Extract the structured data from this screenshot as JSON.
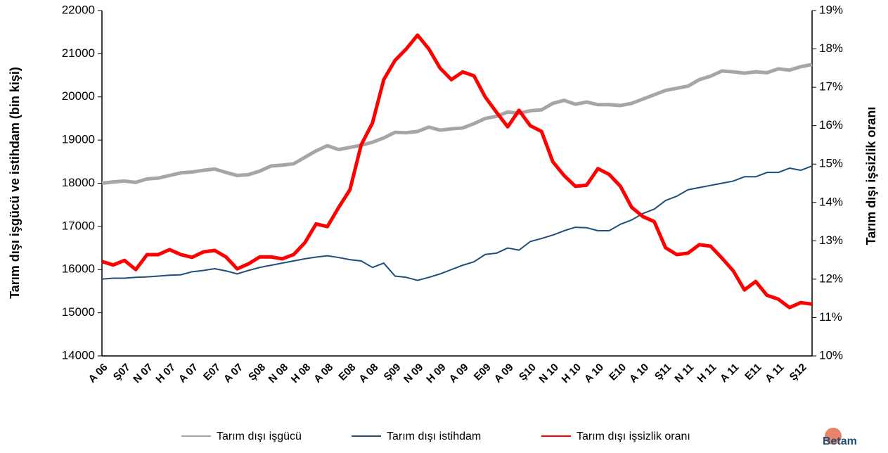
{
  "chart_data": {
    "type": "line",
    "y_label": "Tarım dışı işgücü ve istihdam (bin kişi)",
    "y2_label": "Tarım dışı işsizlik oranı",
    "logo": "Betam",
    "categories": [
      "A 06",
      null,
      "Ş07",
      null,
      "N 07",
      null,
      "H 07",
      null,
      "A 07",
      null,
      "E07",
      null,
      "A 07",
      null,
      "Ş08",
      null,
      "N 08",
      null,
      "H 08",
      null,
      "A 08",
      null,
      "E08",
      null,
      "A 08",
      null,
      "Ş09",
      null,
      "N 09",
      null,
      "H 09",
      null,
      "A 09",
      null,
      "E09",
      null,
      "A 09",
      null,
      "Ş10",
      null,
      "N 10",
      null,
      "H 10",
      null,
      "A 10",
      null,
      "E10",
      null,
      "A 10",
      null,
      "Ş11",
      null,
      "N 11",
      null,
      "H 11",
      null,
      "A 11",
      null,
      "E11",
      null,
      "A 11",
      null,
      "Ş12",
      null
    ],
    "ylim": [
      14000,
      22000
    ],
    "yticks": [
      14000,
      15000,
      16000,
      17000,
      18000,
      19000,
      20000,
      21000,
      22000
    ],
    "y2lim": [
      10,
      19
    ],
    "y2ticks": [
      {
        "value": 10,
        "label": "10%"
      },
      {
        "value": 11,
        "label": "11%"
      },
      {
        "value": 12,
        "label": "12%"
      },
      {
        "value": 13,
        "label": "13%"
      },
      {
        "value": 14,
        "label": "14%"
      },
      {
        "value": 15,
        "label": "15%"
      },
      {
        "value": 16,
        "label": "16%"
      },
      {
        "value": 17,
        "label": "17%"
      },
      {
        "value": 18,
        "label": "18%"
      },
      {
        "value": 19,
        "label": "19%"
      }
    ],
    "legend": "bottom",
    "series": [
      {
        "name": "Tarım dışı işgücü",
        "color": "#a6a6a6",
        "width": 5,
        "values": [
          18000,
          18030,
          18050,
          18020,
          18100,
          18120,
          18180,
          18240,
          18260,
          18300,
          18330,
          18250,
          18180,
          18200,
          18280,
          18400,
          18420,
          18450,
          18600,
          18750,
          18870,
          18780,
          18830,
          18880,
          18950,
          19050,
          19180,
          19170,
          19200,
          19300,
          19230,
          19260,
          19280,
          19380,
          19500,
          19550,
          19650,
          19620,
          19680,
          19700,
          19850,
          19920,
          19830,
          19880,
          19820,
          19820,
          19800,
          19850,
          19950,
          20050,
          20150,
          20200,
          20250,
          20400,
          20480,
          20600,
          20580,
          20550,
          20580,
          20560,
          20650,
          20620,
          20700,
          20750
        ]
      },
      {
        "name": "Tarım dışı istihdam",
        "color": "#1f4e79",
        "width": 2,
        "values": [
          15780,
          15800,
          15800,
          15820,
          15830,
          15850,
          15870,
          15880,
          15950,
          15980,
          16020,
          15970,
          15900,
          15980,
          16050,
          16100,
          16150,
          16200,
          16250,
          16290,
          16320,
          16280,
          16230,
          16200,
          16050,
          16150,
          15850,
          15820,
          15750,
          15820,
          15900,
          16000,
          16100,
          16180,
          16350,
          16380,
          16500,
          16450,
          16650,
          16720,
          16800,
          16900,
          16980,
          16970,
          16900,
          16900,
          17050,
          17150,
          17300,
          17400,
          17600,
          17700,
          17850,
          17900,
          17950,
          18000,
          18050,
          18150,
          18150,
          18250,
          18250,
          18350,
          18300,
          18400
        ]
      },
      {
        "name": "Tarım dışı işsizlik oranı",
        "color": "#ff0000",
        "width": 5,
        "axis": "y2",
        "values": [
          12.46,
          12.37,
          12.49,
          12.25,
          12.64,
          12.64,
          12.77,
          12.64,
          12.57,
          12.71,
          12.75,
          12.58,
          12.27,
          12.4,
          12.58,
          12.58,
          12.53,
          12.64,
          12.95,
          13.44,
          13.37,
          13.87,
          14.33,
          15.5,
          16.07,
          17.2,
          17.7,
          18.0,
          18.36,
          18.0,
          17.5,
          17.2,
          17.4,
          17.3,
          16.75,
          16.35,
          15.97,
          16.4,
          16.0,
          15.85,
          15.06,
          14.7,
          14.42,
          14.45,
          14.88,
          14.73,
          14.42,
          13.87,
          13.63,
          13.5,
          12.82,
          12.64,
          12.68,
          12.9,
          12.86,
          12.55,
          12.22,
          11.72,
          11.94,
          11.58,
          11.48,
          11.26,
          11.39,
          11.35
        ]
      }
    ]
  }
}
